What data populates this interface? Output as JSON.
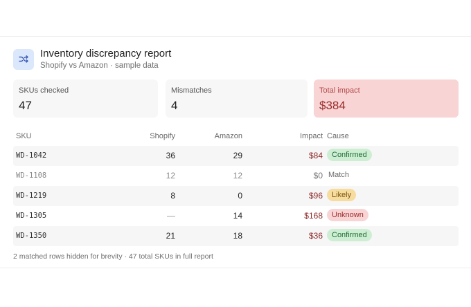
{
  "header": {
    "title": "Inventory discrepancy report",
    "subtitle": "Shopify vs Amazon · sample data",
    "icon": "shuffle-icon",
    "icon_color": "#3b5bb5"
  },
  "stats": [
    {
      "label": "SKUs checked",
      "value": "47"
    },
    {
      "label": "Mismatches",
      "value": "4"
    },
    {
      "label": "Total impact",
      "value": "$384"
    }
  ],
  "table": {
    "columns": {
      "sku": "SKU",
      "shopify": "Shopify",
      "amazon": "Amazon",
      "impact": "Impact",
      "cause": "Cause"
    },
    "rows": [
      {
        "sku": "WD-1042",
        "shopify": "36",
        "amazon": "29",
        "impact": "$84",
        "cause": "Confirmed",
        "status": "confirmed"
      },
      {
        "sku": "WD-1108",
        "shopify": "12",
        "amazon": "12",
        "impact": "$0",
        "cause": "Match",
        "status": "match"
      },
      {
        "sku": "WD-1219",
        "shopify": "8",
        "amazon": "0",
        "impact": "$96",
        "cause": "Likely",
        "status": "likely"
      },
      {
        "sku": "WD-1305",
        "shopify": "—",
        "amazon": "14",
        "impact": "$168",
        "cause": "Unknown",
        "status": "unknown"
      },
      {
        "sku": "WD-1350",
        "shopify": "21",
        "amazon": "18",
        "impact": "$36",
        "cause": "Confirmed",
        "status": "confirmed"
      }
    ]
  },
  "footnote": "2 matched rows hidden for brevity · 47 total SKUs in full report"
}
